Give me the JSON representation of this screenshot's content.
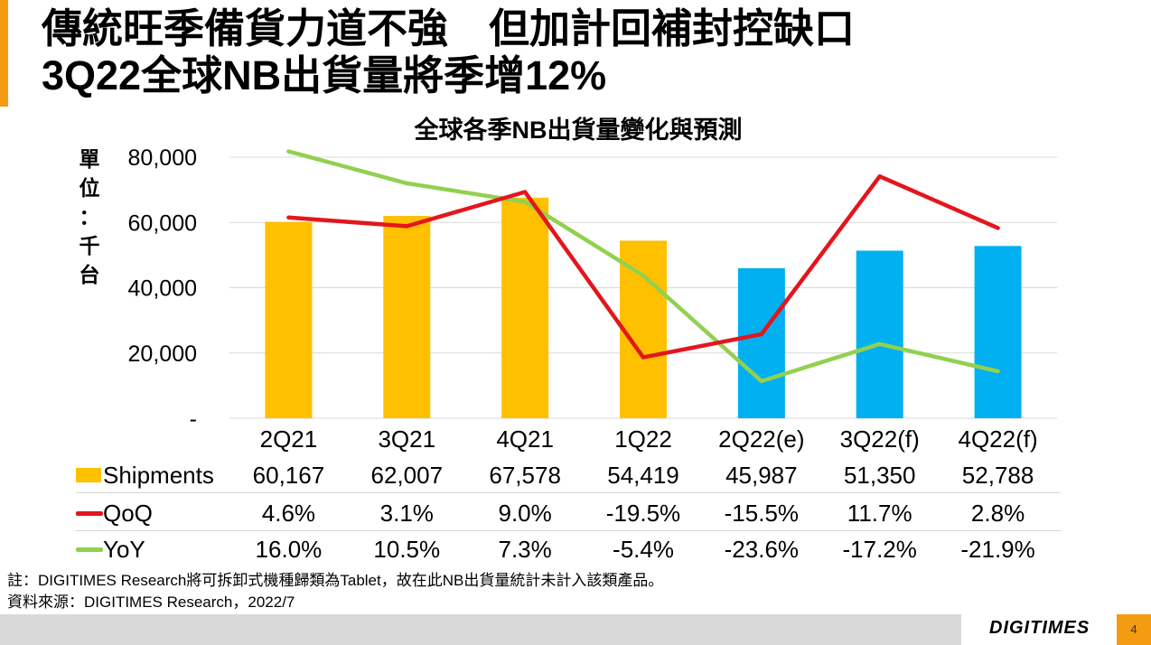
{
  "slide": {
    "title_line1": "傳統旺季備貨力道不強　但加計回補封控缺口",
    "title_line2": "3Q22全球NB出貨量將季增12%",
    "unit_label": "單位：千台",
    "footnote1": "註：DIGITIMES Research將可拆卸式機種歸類為Tablet，故在此NB出貨量統計未計入該類產品。",
    "footnote2": "資料來源：DIGITIMES Research，2022/7",
    "logo": "DIGITIMES",
    "page_number": "4"
  },
  "colors": {
    "accent": "#F39C12",
    "shipments_actual": "#FFC000",
    "shipments_forecast": "#00B0F0",
    "qoq": "#E3161D",
    "yoy": "#92D050"
  },
  "chart_data": {
    "type": "bar",
    "title": "全球各季NB出貨量變化與預測",
    "categories": [
      "2Q21",
      "3Q21",
      "4Q21",
      "1Q22",
      "2Q22(e)",
      "3Q22(f)",
      "4Q22(f)"
    ],
    "ylim": [
      0,
      80000
    ],
    "yticks": [
      0,
      20000,
      40000,
      60000,
      80000
    ],
    "ytick_labels": [
      "-",
      "20,000",
      "40,000",
      "60,000",
      "80,000"
    ],
    "grid": true,
    "series": [
      {
        "name": "Shipments",
        "type": "bar",
        "values": [
          60167,
          62007,
          67578,
          54419,
          45987,
          51350,
          52788
        ],
        "labels": [
          "60,167",
          "62,007",
          "67,578",
          "54,419",
          "45,987",
          "51,350",
          "52,788"
        ],
        "forecast_from_index": 4
      },
      {
        "name": "QoQ",
        "type": "line",
        "values": [
          4.6,
          3.1,
          9.0,
          -19.5,
          -15.5,
          11.7,
          2.8
        ],
        "labels": [
          "4.6%",
          "3.1%",
          "9.0%",
          "-19.5%",
          "-15.5%",
          "11.7%",
          "2.8%"
        ]
      },
      {
        "name": "YoY",
        "type": "line",
        "values": [
          16.0,
          10.5,
          7.3,
          -5.4,
          -23.6,
          -17.2,
          -21.9
        ],
        "labels": [
          "16.0%",
          "10.5%",
          "7.3%",
          "-5.4%",
          "-23.6%",
          "-17.2%",
          "-21.9%"
        ]
      }
    ]
  }
}
